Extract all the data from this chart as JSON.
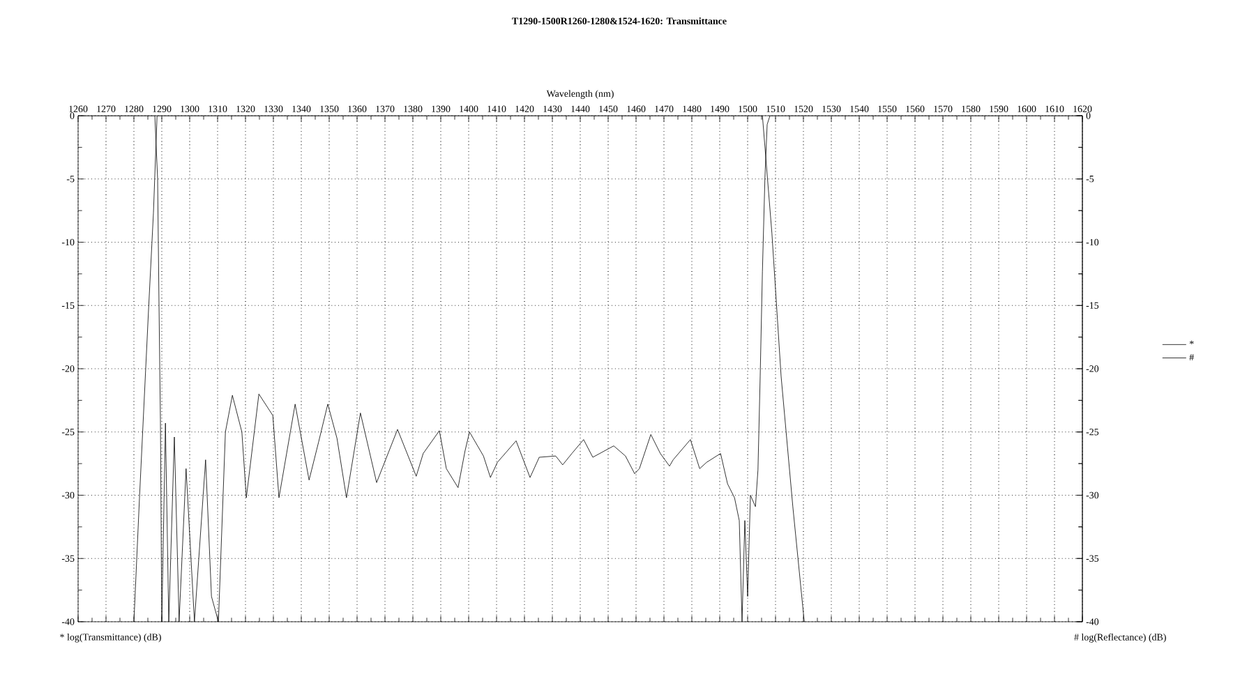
{
  "chart_data": {
    "type": "line",
    "title": "T1290-1500R1260-1280&1524-1620: Transmittance",
    "xlabel": "Wavelength (nm)",
    "ylabel": "* log(Transmittance) (dB)",
    "y2label": "# log(Reflectance) (dB)",
    "xlim": [
      1260,
      1620
    ],
    "xticks": [
      1260,
      1270,
      1280,
      1290,
      1300,
      1310,
      1320,
      1330,
      1340,
      1350,
      1360,
      1370,
      1380,
      1390,
      1400,
      1410,
      1420,
      1430,
      1440,
      1450,
      1460,
      1470,
      1480,
      1490,
      1500,
      1510,
      1520,
      1530,
      1540,
      1550,
      1560,
      1570,
      1580,
      1590,
      1600,
      1610,
      1620
    ],
    "ylim": [
      -40,
      0
    ],
    "yticks": [
      0,
      -5,
      -10,
      -15,
      -20,
      -25,
      -30,
      -35,
      -40
    ],
    "y2lim": [
      -40,
      0
    ],
    "y2ticks": [
      0,
      -5,
      -10,
      -15,
      -20,
      -25,
      -30,
      -35,
      -40
    ],
    "grid": true,
    "legend": "right",
    "marker": "none",
    "line_style": "solid",
    "series": [
      {
        "name": "*",
        "color": "#000000",
        "x": [
          1280,
          1282,
          1285.3,
          1287,
          1288.3,
          1505.3,
          1508.7,
          1512,
          1516.2,
          1520.3
        ],
        "values": [
          -40,
          -30.2,
          -15.1,
          -7.7,
          0,
          0,
          -9.3,
          -20.6,
          -30.9,
          -40
        ]
      },
      {
        "name": "#",
        "color": "#000000",
        "axis": "y2",
        "x": [
          1260,
          1287.5,
          1288.5,
          1289,
          1289.5,
          1290,
          1291.3,
          1292.5,
          1294.5,
          1296.2,
          1298.7,
          1301.7,
          1305.7,
          1307.8,
          1310.3,
          1312.8,
          1315.3,
          1318.7,
          1320.3,
          1324.8,
          1329.8,
          1332,
          1337.8,
          1342.8,
          1346.2,
          1349.5,
          1352.8,
          1356.2,
          1361.2,
          1367,
          1374.5,
          1381.2,
          1383.7,
          1389.5,
          1392,
          1396.2,
          1398.7,
          1400.3,
          1405.3,
          1407.8,
          1410.3,
          1417,
          1422,
          1425.3,
          1431.2,
          1433.7,
          1437,
          1441.2,
          1444.5,
          1452,
          1456.2,
          1459.5,
          1461.2,
          1465.3,
          1468.7,
          1472,
          1473.3,
          1479.5,
          1482.8,
          1485.3,
          1490.3,
          1492.8,
          1495.3,
          1497,
          1498,
          1499,
          1500,
          1501,
          1502.8,
          1503.7,
          1504.5,
          1505.3,
          1506.2,
          1507,
          1508,
          1620
        ],
        "values": [
          0,
          0,
          -5,
          -15,
          -24,
          -40,
          -24.3,
          -40,
          -25.4,
          -40,
          -27.9,
          -40,
          -27.2,
          -38,
          -40,
          -25,
          -22.1,
          -25,
          -30.2,
          -22,
          -23.7,
          -30.2,
          -22.8,
          -28.8,
          -25.8,
          -22.8,
          -25.5,
          -30.2,
          -23.5,
          -29,
          -24.8,
          -28.5,
          -26.7,
          -24.9,
          -27.9,
          -29.4,
          -26.5,
          -25,
          -26.9,
          -28.6,
          -27.4,
          -25.7,
          -28.6,
          -27,
          -26.9,
          -27.6,
          -26.7,
          -25.6,
          -27,
          -26.1,
          -26.9,
          -28.3,
          -27.9,
          -25.2,
          -26.7,
          -27.7,
          -27.2,
          -25.6,
          -27.9,
          -27.4,
          -26.7,
          -29.1,
          -30.2,
          -32,
          -40,
          -32,
          -38,
          -30,
          -30.9,
          -28,
          -20.6,
          -12.3,
          -4.9,
          -0.7,
          0,
          0
        ]
      }
    ]
  }
}
